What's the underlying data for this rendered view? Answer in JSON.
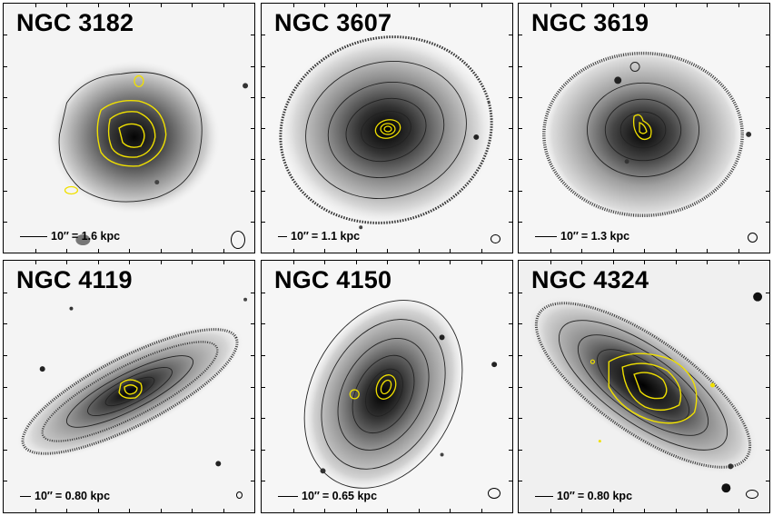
{
  "panels": [
    {
      "title": "NGC 3182",
      "scale_arcsec": "10″",
      "scale_phys": "= 1.6 kpc"
    },
    {
      "title": "NGC 3607",
      "scale_arcsec": "10″",
      "scale_phys": "= 1.1 kpc"
    },
    {
      "title": "NGC 3619",
      "scale_arcsec": "10″",
      "scale_phys": "= 1.3 kpc"
    },
    {
      "title": "NGC 4119",
      "scale_arcsec": "10″",
      "scale_phys": "= 0.80 kpc"
    },
    {
      "title": "NGC 4150",
      "scale_arcsec": "10″",
      "scale_phys": "= 0.65 kpc"
    },
    {
      "title": "NGC 4324",
      "scale_arcsec": "10″",
      "scale_phys": "= 0.80 kpc"
    }
  ],
  "colors": {
    "gas_contours": "#f0e000",
    "stellar_contours": "#111111",
    "frame": "#000000"
  }
}
